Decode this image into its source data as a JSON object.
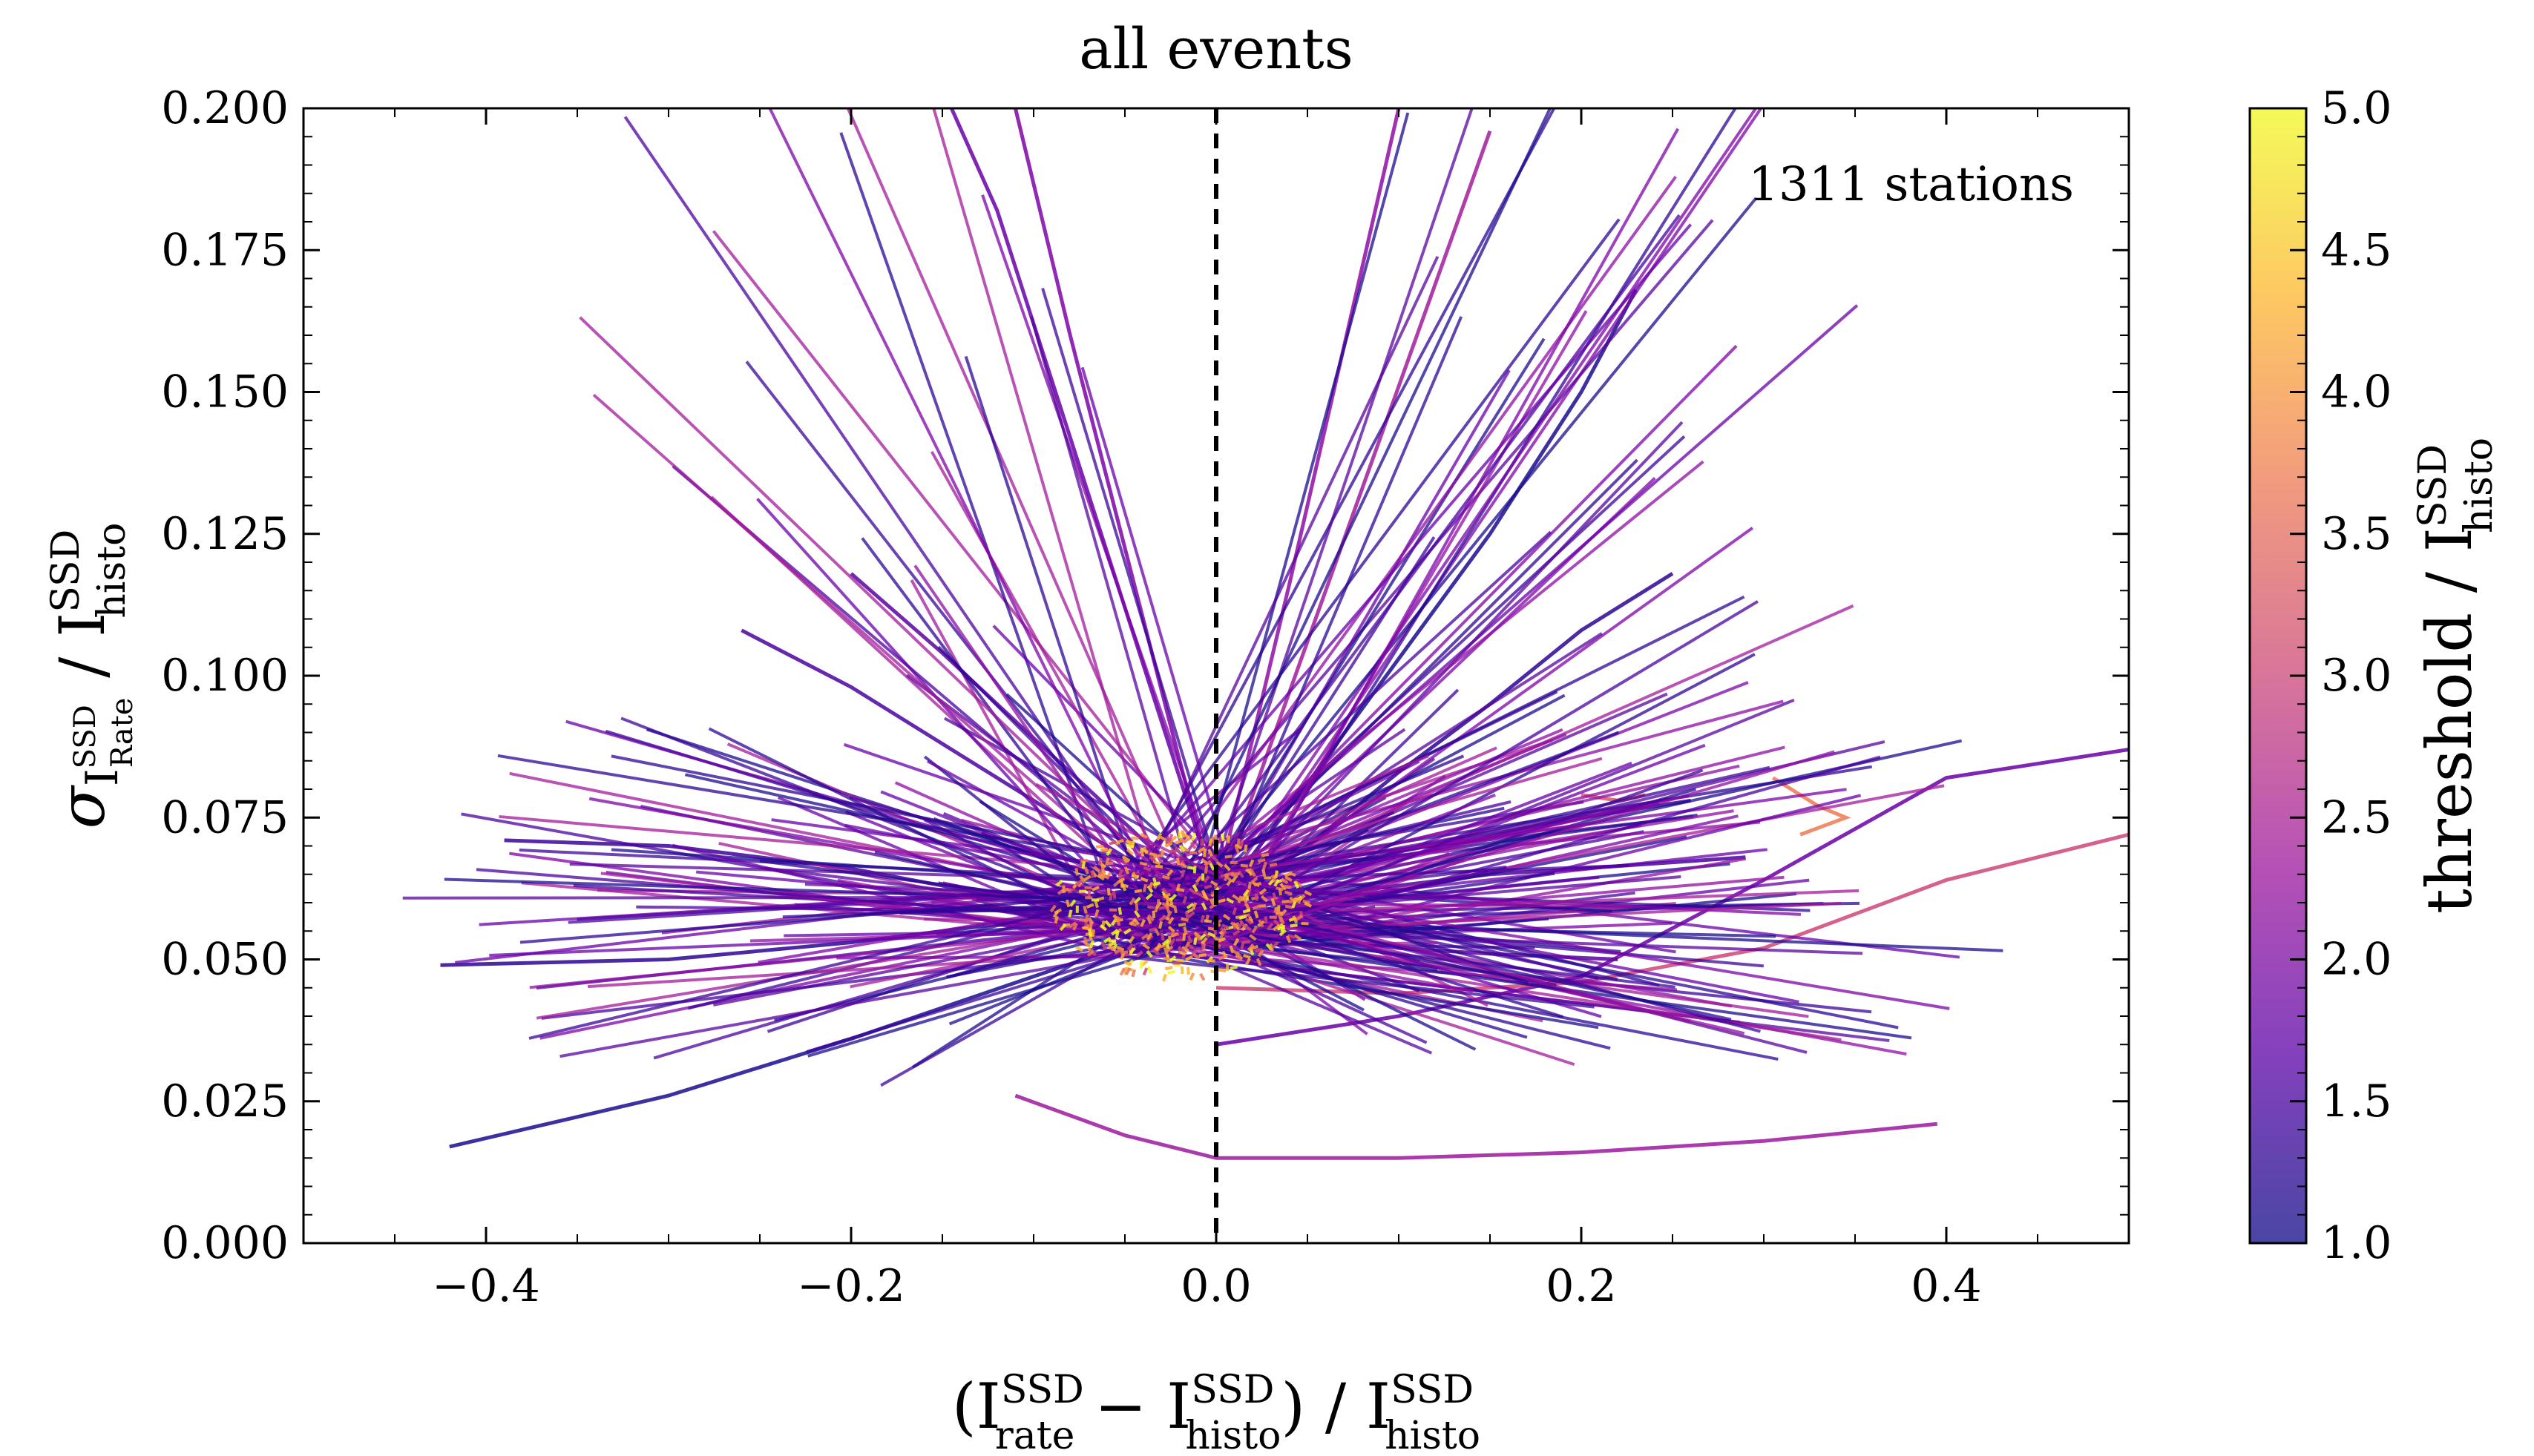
{
  "chart_data": {
    "type": "line",
    "title": "all events",
    "annotation": "1311 stations",
    "station_count": 1311,
    "xlabel": {
      "base": "(I",
      "sup1": "SSD",
      "sub1": "rate",
      "mid": " − I",
      "sup2": "SSD",
      "sub2": "histo",
      "mid2": ") / I",
      "sup3": "SSD",
      "sub3": "histo"
    },
    "ylabel": {
      "sigma": "σ",
      "inner": "I",
      "inner_sup": "SSD",
      "inner_sub": "Rate",
      "mid": " / I",
      "sup": "SSD",
      "sub": "histo"
    },
    "colorbar_label": {
      "base": "threshold / I",
      "sup": "SSD",
      "sub": "histo"
    },
    "xlim": [
      -0.5,
      0.5
    ],
    "ylim": [
      0.0,
      0.2
    ],
    "x_ticks": [
      -0.4,
      -0.2,
      0.0,
      0.2,
      0.4
    ],
    "x_tick_labels": [
      "−0.4",
      "−0.2",
      "0.0",
      "0.2",
      "0.4"
    ],
    "y_ticks": [
      0.0,
      0.025,
      0.05,
      0.075,
      0.1,
      0.125,
      0.15,
      0.175,
      0.2
    ],
    "y_tick_labels": [
      "0.000",
      "0.025",
      "0.050",
      "0.075",
      "0.100",
      "0.125",
      "0.150",
      "0.175",
      "0.200"
    ],
    "colorbar": {
      "range": [
        1.0,
        5.0
      ],
      "ticks": [
        1.0,
        1.5,
        2.0,
        2.5,
        3.0,
        3.5,
        4.0,
        4.5,
        5.0
      ],
      "tick_labels": [
        "1.0",
        "1.5",
        "2.0",
        "2.5",
        "3.0",
        "3.5",
        "4.0",
        "4.5",
        "5.0"
      ],
      "colormap": "plasma",
      "colors": [
        "#0d0887",
        "#5c01a6",
        "#9c179e",
        "#cc4778",
        "#ed7953",
        "#fdb42f",
        "#f0f921"
      ]
    },
    "reference_line": {
      "x": 0.0,
      "style": "dashed",
      "color": "#000000"
    },
    "grid": false,
    "series": [
      {
        "x": [
          0.0,
          -0.1,
          -0.2,
          -0.3,
          -0.42
        ],
        "y": [
          0.058,
          0.047,
          0.036,
          0.026,
          0.017
        ]
      },
      {
        "x": [
          0.0,
          -0.1,
          -0.2,
          -0.3,
          -0.425
        ],
        "y": [
          0.062,
          0.057,
          0.053,
          0.05,
          0.049
        ]
      },
      {
        "x": [
          0.0,
          -0.1,
          -0.2,
          -0.3,
          -0.39
        ],
        "y": [
          0.064,
          0.06,
          0.066,
          0.07,
          0.071
        ]
      },
      {
        "x": [
          0.0,
          -0.05,
          -0.1,
          -0.15,
          -0.2,
          -0.26
        ],
        "y": [
          0.06,
          0.068,
          0.078,
          0.088,
          0.098,
          0.108
        ]
      },
      {
        "x": [
          0.0,
          -0.05,
          -0.1,
          -0.15,
          -0.2
        ],
        "y": [
          0.059,
          0.074,
          0.089,
          0.104,
          0.118
        ]
      },
      {
        "x": [
          0.0,
          -0.03,
          -0.06,
          -0.09,
          -0.12,
          -0.145
        ],
        "y": [
          0.062,
          0.092,
          0.122,
          0.152,
          0.182,
          0.2
        ]
      },
      {
        "x": [
          0.0,
          -0.02,
          -0.04,
          -0.06,
          -0.08,
          -0.11
        ],
        "y": [
          0.061,
          0.085,
          0.11,
          0.135,
          0.16,
          0.2
        ]
      },
      {
        "x": [
          0.0,
          0.02,
          0.04,
          0.06,
          0.08,
          0.1
        ],
        "y": [
          0.062,
          0.089,
          0.116,
          0.144,
          0.172,
          0.2
        ]
      },
      {
        "x": [
          0.0,
          0.03,
          0.06,
          0.09,
          0.12,
          0.15
        ],
        "y": [
          0.061,
          0.088,
          0.115,
          0.142,
          0.169,
          0.196
        ]
      },
      {
        "x": [
          0.0,
          0.05,
          0.1,
          0.15,
          0.2,
          0.23
        ],
        "y": [
          0.06,
          0.081,
          0.103,
          0.125,
          0.15,
          0.168
        ]
      },
      {
        "x": [
          0.0,
          0.05,
          0.1,
          0.15,
          0.2,
          0.25
        ],
        "y": [
          0.058,
          0.07,
          0.083,
          0.095,
          0.108,
          0.118
        ]
      },
      {
        "x": [
          0.0,
          0.05,
          0.1,
          0.15,
          0.2,
          0.26
        ],
        "y": [
          0.06,
          0.064,
          0.069,
          0.072,
          0.075,
          0.078
        ]
      },
      {
        "x": [
          0.0,
          0.05,
          0.1,
          0.15,
          0.2,
          0.29
        ],
        "y": [
          0.058,
          0.061,
          0.063,
          0.065,
          0.066,
          0.068
        ]
      },
      {
        "x": [
          0.0,
          0.05,
          0.1,
          0.15,
          0.22
        ],
        "y": [
          0.055,
          0.054,
          0.052,
          0.051,
          0.05
        ]
      },
      {
        "x": [
          0.0,
          0.1,
          0.2,
          0.3,
          0.4,
          0.5
        ],
        "y": [
          0.035,
          0.04,
          0.047,
          0.064,
          0.082,
          0.087
        ]
      },
      {
        "x": [
          -0.11,
          -0.05,
          0.0,
          0.1,
          0.2,
          0.3,
          0.395
        ],
        "y": [
          0.026,
          0.019,
          0.015,
          0.015,
          0.016,
          0.018,
          0.021
        ]
      },
      {
        "x": [
          0.0,
          0.1,
          0.2,
          0.3,
          0.4,
          0.5
        ],
        "y": [
          0.045,
          0.044,
          0.046,
          0.052,
          0.064,
          0.072
        ]
      },
      {
        "x": [
          0.2,
          0.22,
          0.235
        ],
        "y": [
          0.079,
          0.078,
          0.079
        ]
      },
      {
        "x": [
          0.305,
          0.33,
          0.345,
          0.32
        ],
        "y": [
          0.082,
          0.077,
          0.075,
          0.072
        ]
      }
    ]
  }
}
